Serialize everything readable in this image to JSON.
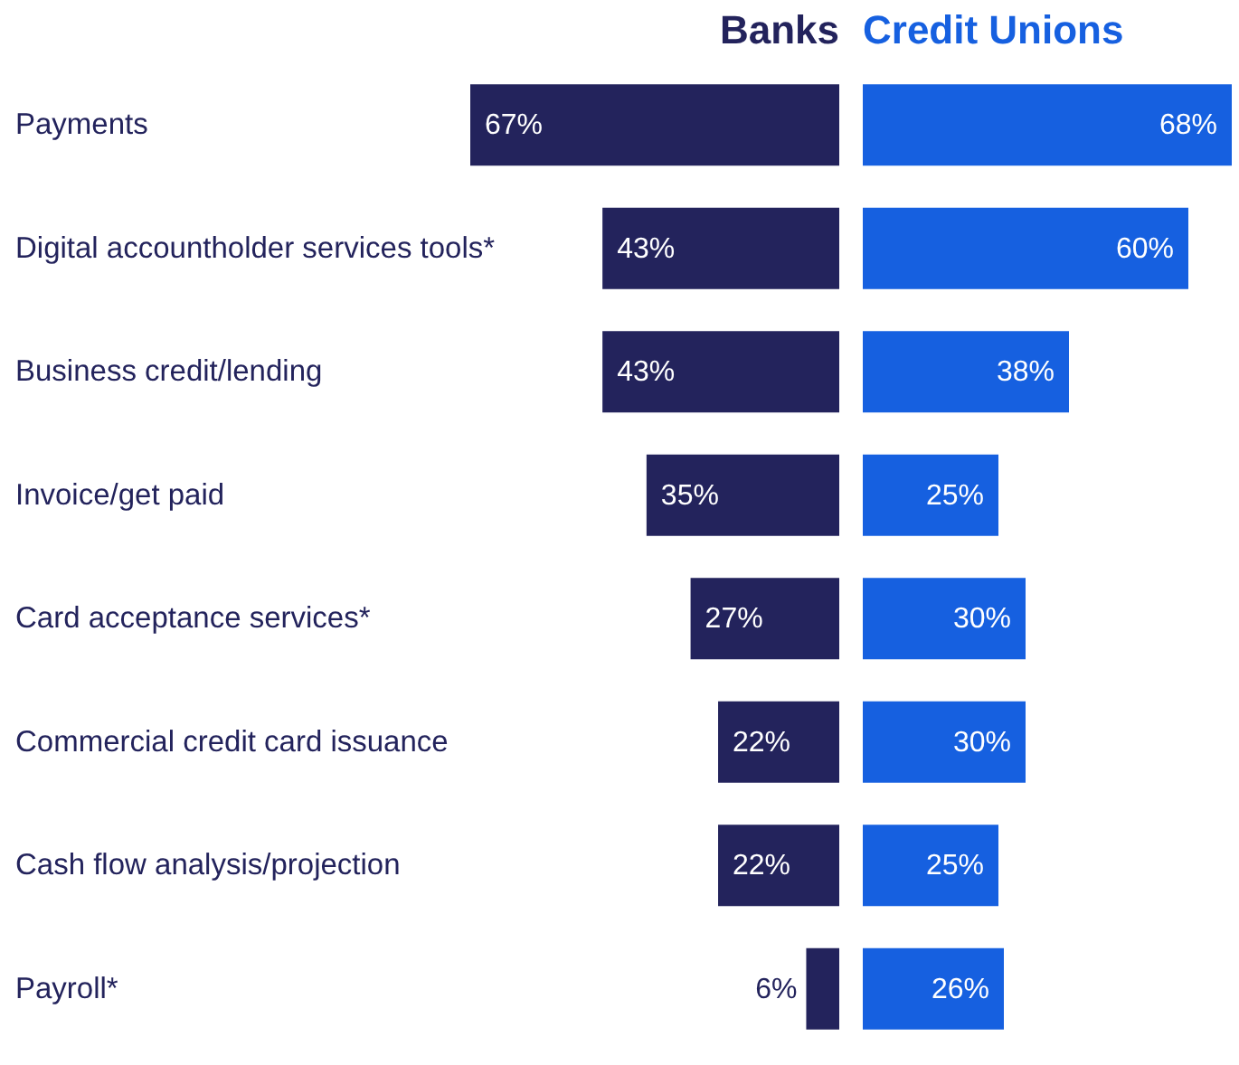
{
  "chart_data": [
    {
      "type": "bar",
      "orientation": "horizontal",
      "categories": [
        "Payments",
        "Digital accountholder services tools*",
        "Business credit/lending",
        "Invoice/get paid",
        "Card acceptance services*",
        "Commercial credit card issuance",
        "Cash flow analysis/projection",
        "Payroll*"
      ],
      "xlim": [
        67,
        0
      ],
      "tick_labels": "y",
      "series": [
        {
          "name": "Banks",
          "color": "#23235c",
          "values": [
            67,
            43,
            43,
            35,
            27,
            22,
            22,
            6
          ],
          "value_labels": [
            "67%",
            "43%",
            "43%",
            "35%",
            "27%",
            "22%",
            "22%",
            "6%"
          ]
        }
      ]
    },
    {
      "type": "bar",
      "orientation": "horizontal",
      "categories": [
        null,
        null,
        null,
        null,
        null,
        null,
        null,
        null
      ],
      "xlim": [
        0,
        68
      ],
      "tick_labels": false,
      "series": [
        {
          "name": "Credit Unions",
          "color": "#1660e0",
          "values": [
            68,
            60,
            38,
            25,
            30,
            30,
            25,
            26
          ],
          "value_labels": [
            "68%",
            "60%",
            "38%",
            "25%",
            "30%",
            "30%",
            "25%",
            "26%"
          ]
        }
      ]
    }
  ]
}
